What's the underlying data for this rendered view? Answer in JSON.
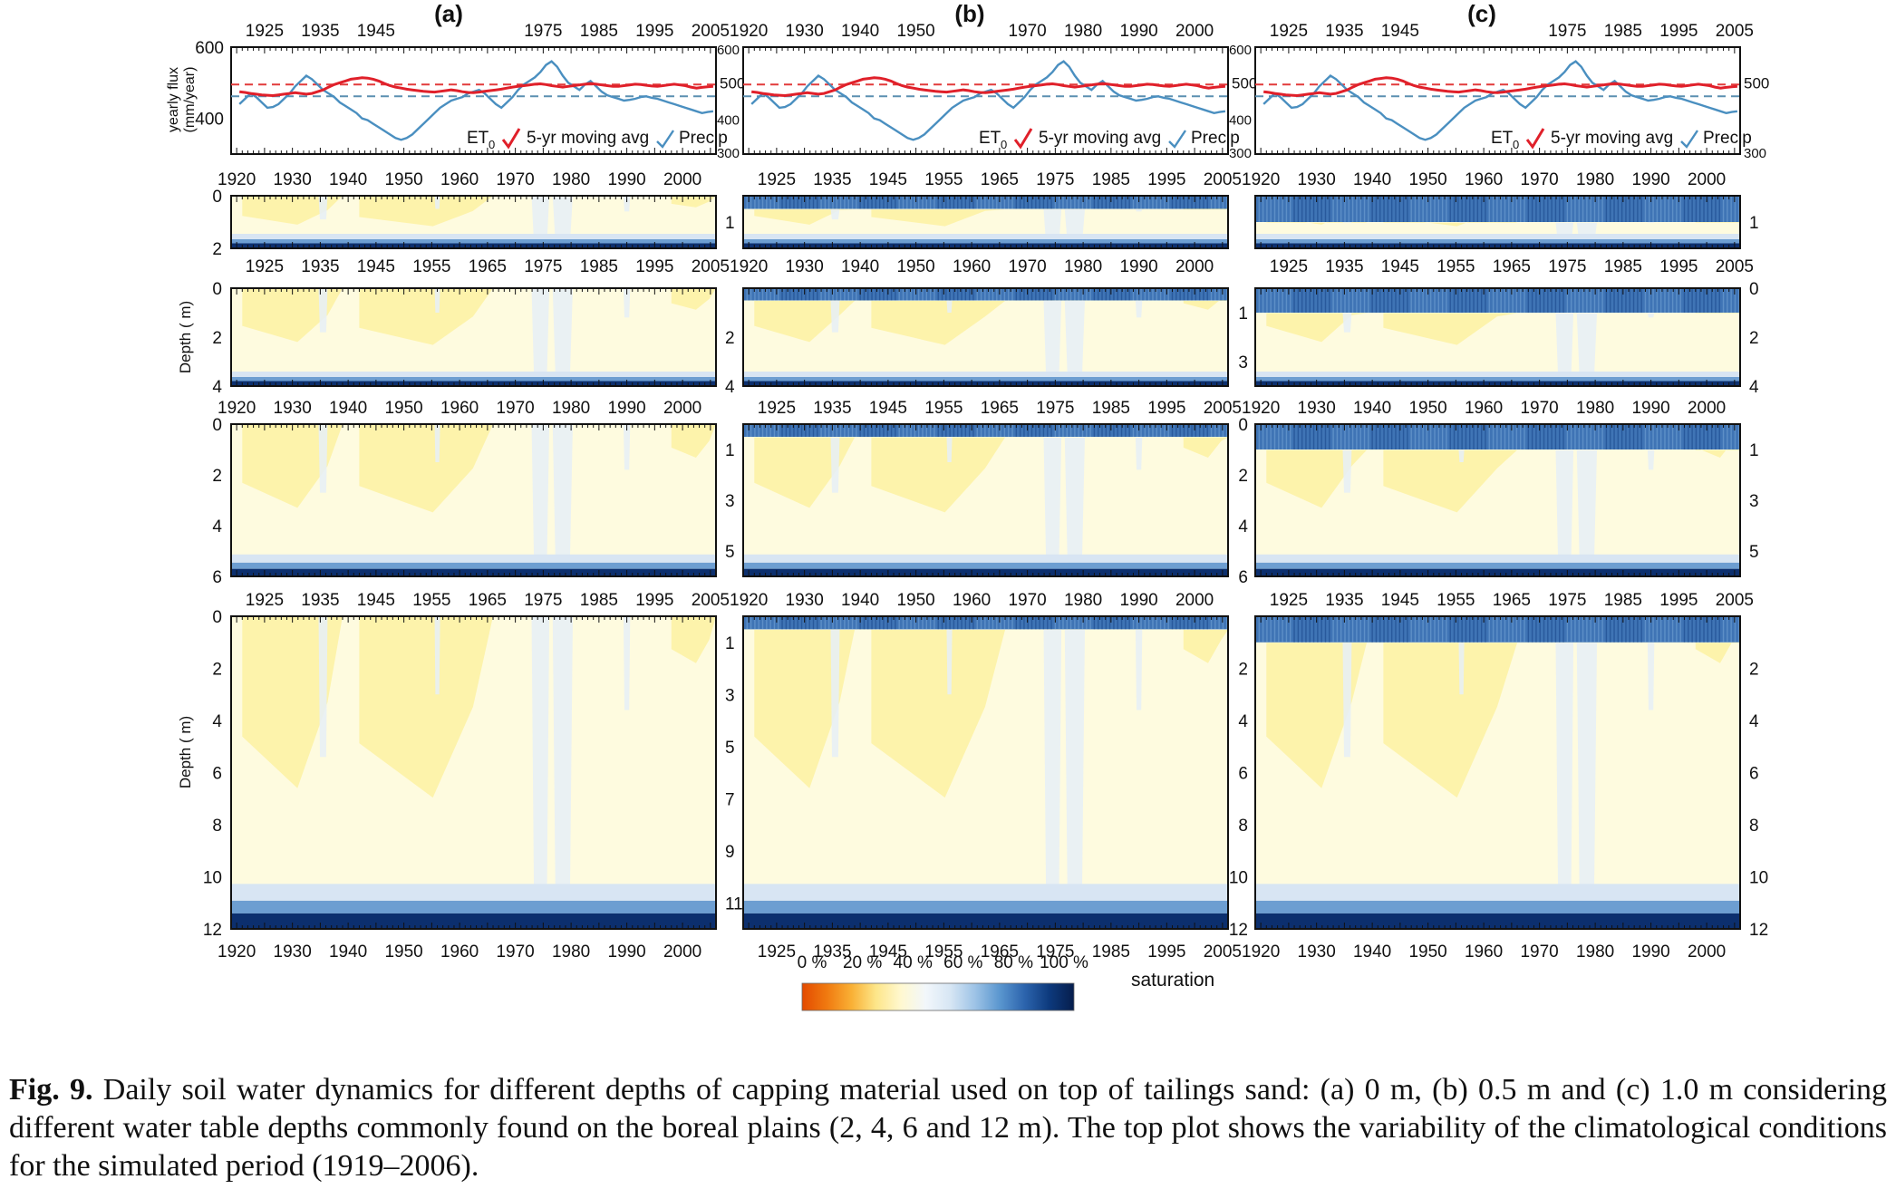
{
  "panels": [
    {
      "label": "(a)",
      "capping_depth": "0 m"
    },
    {
      "label": "(b)",
      "capping_depth": "0.5 m"
    },
    {
      "label": "(c)",
      "capping_depth": "1.0 m"
    }
  ],
  "top_plot": {
    "ylabel_line1": "yearly flux",
    "ylabel_line2": "(mm/year)",
    "left_yticks": [
      "600",
      "400"
    ],
    "right_yticks": [
      "500",
      "400",
      "300"
    ],
    "legend": {
      "et0": "ET",
      "et0_sub": "0",
      "moving_avg": "5-yr moving avg",
      "precip": "Precip"
    },
    "years": [
      1920,
      1921,
      1922,
      1923,
      1924,
      1925,
      1926,
      1927,
      1928,
      1929,
      1930,
      1931,
      1932,
      1933,
      1934,
      1935,
      1936,
      1937,
      1938,
      1939,
      1940,
      1941,
      1942,
      1943,
      1944,
      1945,
      1946,
      1947,
      1948,
      1949,
      1950,
      1951,
      1952,
      1953,
      1954,
      1955,
      1956,
      1957,
      1958,
      1959,
      1960,
      1961,
      1962,
      1963,
      1964,
      1965,
      1966,
      1967,
      1968,
      1969,
      1970,
      1971,
      1972,
      1973,
      1974,
      1975,
      1976,
      1977,
      1978,
      1979,
      1980,
      1981,
      1982,
      1983,
      1984,
      1985,
      1986,
      1987,
      1988,
      1989,
      1990,
      1991,
      1992,
      1993,
      1994,
      1995,
      1996,
      1997,
      1998,
      1999,
      2000,
      2001,
      2002,
      2003,
      2004,
      2005
    ],
    "et0_ma": [
      475,
      473,
      470,
      468,
      466,
      465,
      464,
      466,
      468,
      470,
      472,
      470,
      468,
      470,
      475,
      480,
      488,
      495,
      500,
      505,
      510,
      512,
      514,
      513,
      510,
      505,
      498,
      492,
      488,
      485,
      482,
      480,
      478,
      476,
      475,
      474,
      476,
      478,
      480,
      478,
      475,
      473,
      472,
      474,
      476,
      478,
      480,
      482,
      485,
      488,
      490,
      492,
      494,
      496,
      497,
      495,
      492,
      490,
      488,
      490,
      492,
      494,
      496,
      498,
      496,
      494,
      492,
      490,
      490,
      492,
      494,
      496,
      495,
      493,
      491,
      490,
      492,
      494,
      496,
      494,
      492,
      488,
      485,
      487,
      489,
      490
    ],
    "precip": [
      440,
      455,
      470,
      460,
      445,
      430,
      432,
      440,
      455,
      470,
      490,
      505,
      520,
      510,
      495,
      480,
      470,
      460,
      445,
      435,
      425,
      415,
      400,
      395,
      385,
      375,
      365,
      355,
      345,
      340,
      345,
      355,
      370,
      385,
      400,
      415,
      430,
      440,
      450,
      455,
      460,
      470,
      475,
      480,
      470,
      455,
      440,
      430,
      445,
      460,
      480,
      495,
      505,
      515,
      530,
      550,
      560,
      545,
      520,
      500,
      490,
      480,
      495,
      505,
      490,
      475,
      465,
      460,
      455,
      450,
      452,
      455,
      460,
      462,
      458,
      455,
      450,
      445,
      440,
      435,
      430,
      425,
      420,
      415,
      418,
      420
    ],
    "axis_left_range": [
      300,
      600
    ],
    "axis_right_range": [
      300,
      600
    ]
  },
  "contour_rows": [
    {
      "water_table_depth": "2 m",
      "left_yticks": [
        "0",
        "2"
      ],
      "b_right_yticks": [
        "1"
      ],
      "c_right_yticks": [
        "1"
      ]
    },
    {
      "water_table_depth": "4 m",
      "left_yticks": [
        "0",
        "2",
        "4"
      ],
      "b_right_yticks": [
        "2",
        "4"
      ],
      "c_left_yticks": [
        "1",
        "3"
      ],
      "c_right_yticks": [
        "0",
        "2",
        "4"
      ]
    },
    {
      "water_table_depth": "6 m",
      "left_yticks": [
        "0",
        "2",
        "4",
        "6"
      ],
      "b_right_yticks": [
        "1",
        "3",
        "5"
      ],
      "b_left_yticks": [
        "0",
        "2",
        "4",
        "6"
      ],
      "c_right_yticks": [
        "1",
        "3",
        "5"
      ]
    },
    {
      "water_table_depth": "12 m",
      "left_yticks": [
        "0",
        "2",
        "4",
        "6",
        "8",
        "10",
        "12"
      ],
      "b_left_yticks": [
        "2",
        "4",
        "6",
        "8",
        "10",
        "12"
      ],
      "b_right_yticks": [
        "1",
        "3",
        "5",
        "7",
        "9",
        "11"
      ],
      "c_right_yticks": [
        "2",
        "4",
        "6",
        "8",
        "10",
        "12"
      ]
    }
  ],
  "depth_label": "Depth ( m)",
  "year_ticks_a": [
    "1920",
    "1930",
    "1940",
    "1950",
    "1960",
    "1970",
    "1980",
    "1990",
    "2000"
  ],
  "year_ticks_b": [
    "1925",
    "1935",
    "1945",
    "1955",
    "1965",
    "1975",
    "1985",
    "1995",
    "2005"
  ],
  "top_header_a": [
    "1925",
    "1935",
    "1945",
    "1975",
    "1985",
    "1995",
    "2005"
  ],
  "top_header_b": [
    "1920",
    "1930",
    "1940",
    "1950",
    "1970",
    "1980",
    "1990",
    "2000"
  ],
  "colorbar": {
    "ticks": [
      "0 %",
      "20 %",
      "40 %",
      "60 %",
      "80 %",
      "100 %"
    ],
    "label": "saturation",
    "colors": [
      "#e34a00",
      "#f07a10",
      "#f9b035",
      "#fde68a",
      "#fff8d0",
      "#f2f7fb",
      "#d7e6f4",
      "#9dc3e6",
      "#5a96cf",
      "#2c64ad",
      "#0d3a7d",
      "#061d4c"
    ]
  },
  "caption": {
    "label": "Fig. 9.",
    "text": "Daily soil water dynamics for different depths of capping material used on top of tailings sand: (a) 0 m, (b) 0.5 m and (c) 1.0 m considering different water table depths commonly found on the boreal plains (2, 4, 6 and 12 m). The top plot shows the variability of the climatological conditions for the simulated period (1919–2006)."
  },
  "chart_data": {
    "type": "line",
    "title": "yearly flux",
    "xlabel": "",
    "ylabel": "yearly flux (mm/year)",
    "ylim": [
      300,
      600
    ],
    "series": [
      {
        "name": "ET0",
        "values": [
          475
        ]
      },
      {
        "name": "5-yr moving avg",
        "values": [
          475
        ]
      },
      {
        "name": "Precip",
        "values": [
          440
        ]
      }
    ]
  }
}
